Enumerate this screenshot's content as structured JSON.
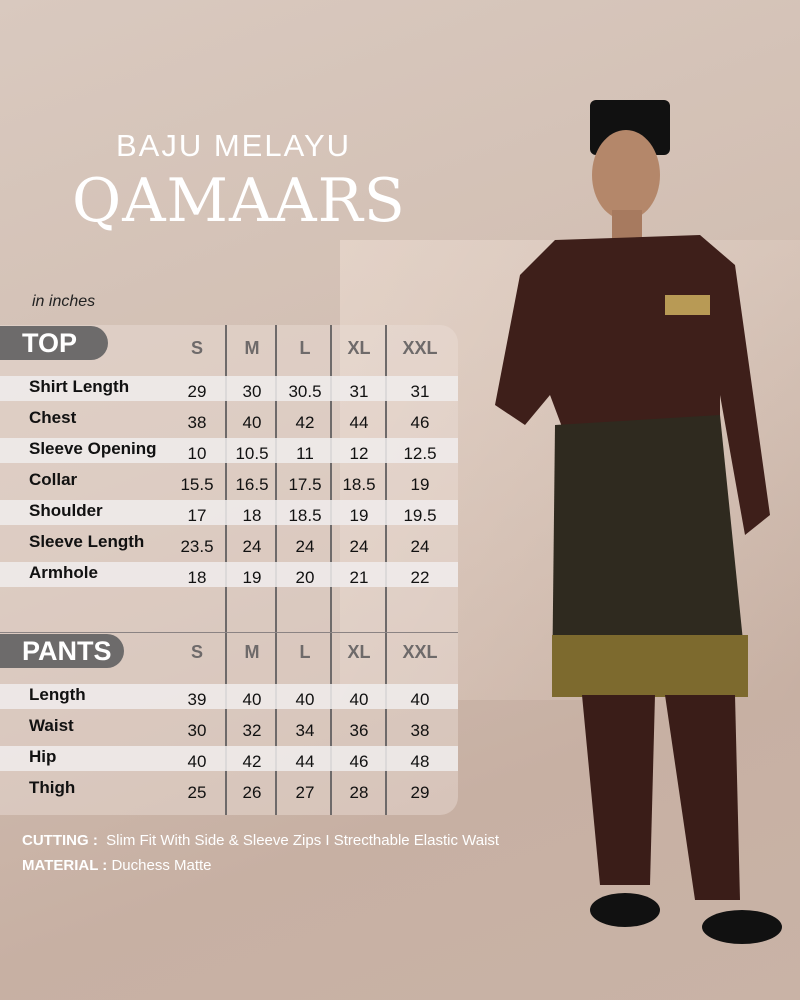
{
  "brand": "BAJU MELAYU",
  "title": "QAMAARS",
  "unit": "in inches",
  "sizes": [
    "S",
    "M",
    "L",
    "XL",
    "XXL"
  ],
  "top": {
    "label": "TOP",
    "rows": [
      {
        "name": "Shirt Length",
        "values": [
          "29",
          "30",
          "30.5",
          "31",
          "31"
        ]
      },
      {
        "name": "Chest",
        "values": [
          "38",
          "40",
          "42",
          "44",
          "46"
        ]
      },
      {
        "name": "Sleeve Opening",
        "values": [
          "10",
          "10.5",
          "11",
          "12",
          "12.5"
        ]
      },
      {
        "name": "Collar",
        "values": [
          "15.5",
          "16.5",
          "17.5",
          "18.5",
          "19"
        ]
      },
      {
        "name": "Shoulder",
        "values": [
          "17",
          "18",
          "18.5",
          "19",
          "19.5"
        ]
      },
      {
        "name": "Sleeve Length",
        "values": [
          "23.5",
          "24",
          "24",
          "24",
          "24"
        ]
      },
      {
        "name": "Armhole",
        "values": [
          "18",
          "19",
          "20",
          "21",
          "22"
        ]
      }
    ]
  },
  "pants": {
    "label": "PANTS",
    "rows": [
      {
        "name": "Length",
        "values": [
          "39",
          "40",
          "40",
          "40",
          "40"
        ]
      },
      {
        "name": "Waist",
        "values": [
          "30",
          "32",
          "34",
          "36",
          "38"
        ]
      },
      {
        "name": "Hip",
        "values": [
          "40",
          "42",
          "44",
          "46",
          "48"
        ]
      },
      {
        "name": "Thigh",
        "values": [
          "25",
          "26",
          "27",
          "28",
          "29"
        ]
      }
    ]
  },
  "cutting": {
    "label": "CUTTING :",
    "value": "Slim Fit With Side & Sleeve Zips I Strecthable Elastic Waist"
  },
  "material": {
    "label": "MATERIAL :",
    "value": "Duchess Matte"
  },
  "colors": {
    "shirt": "#3e1f1a",
    "header_pill": "#6d6b6b",
    "stripe": "#f0ecec"
  }
}
